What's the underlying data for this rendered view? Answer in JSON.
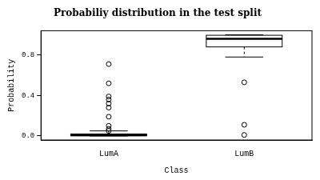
{
  "chart_data": {
    "type": "box",
    "title": "Probabiliy distribution in the test split",
    "x_label": "Class",
    "y_label": "Probability",
    "categories": [
      "LumA",
      "LumB"
    ],
    "boxes": [
      {
        "min": 0,
        "q1": 0.002,
        "median": 0.008,
        "q3": 0.02,
        "max": 0.05,
        "outliers": [
          0.71,
          0.52,
          0.39,
          0.36,
          0.32,
          0.28,
          0.19,
          0.1,
          0.07,
          0.05
        ]
      },
      {
        "min": 0.78,
        "q1": 0.88,
        "median": 0.96,
        "q3": 0.995,
        "max": 1.0,
        "outliers": [
          0.53,
          0.11,
          0.01
        ]
      }
    ],
    "color": "#ffffff",
    "ylim": [
      -0.04,
      1.04
    ],
    "yticks": [
      {
        "value": 0,
        "label": "0.0"
      },
      0.4,
      0.8
    ],
    "grid": false
  }
}
